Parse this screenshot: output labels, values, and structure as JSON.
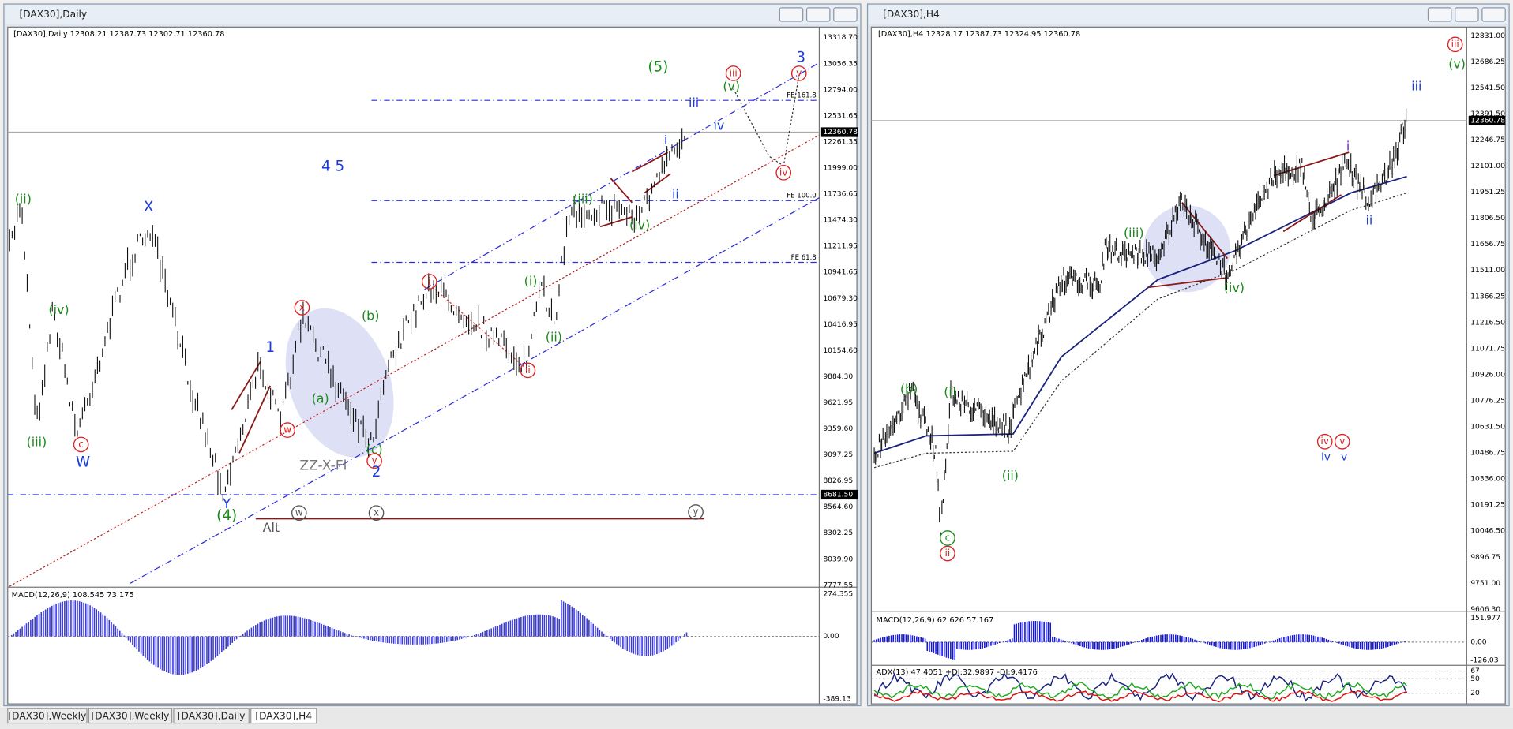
{
  "left_window": {
    "title": "[DAX30],Daily",
    "header": "[DAX30],Daily  12308.21 12387.73 12302.71 12360.78",
    "price_axis": [
      "13318.70",
      "13056.35",
      "12794.00",
      "12531.65",
      "12261.35",
      "11999.00",
      "11736.65",
      "11474.30",
      "11211.95",
      "10941.65",
      "10679.30",
      "10416.95",
      "10154.60",
      "9884.30",
      "9621.95",
      "9359.60",
      "9097.25",
      "8826.95",
      "8564.60",
      "8302.25",
      "8039.90",
      "7777.55"
    ],
    "current_price": "12360.78",
    "level_price": "8681.50",
    "fib_labels": [
      "FE 161.8",
      "FE 100.0",
      "FE 61.8"
    ],
    "wave_labels": [
      "(ii)",
      "(iv)",
      "(iii)",
      "c",
      "W",
      "X",
      "1",
      "x",
      "w",
      "(a)",
      "(b)",
      "(c)",
      "y",
      "2",
      "ZZ-X-Fl",
      "Y",
      "(4)",
      "w",
      "x",
      "y",
      "Alt",
      "i",
      "ii",
      "(i)",
      "(ii)",
      "(iii)",
      "(iv)",
      "i",
      "ii",
      "iii",
      "iv",
      "(v)",
      "iii",
      "iv",
      "v",
      "3",
      "(5)",
      "4 5"
    ],
    "macd": {
      "label": "MACD(12,26,9) 108.545 73.175",
      "axis": [
        "274.355",
        "0.00",
        "-389.13"
      ]
    }
  },
  "right_window": {
    "title": "[DAX30],H4",
    "header": "[DAX30],H4  12328.17 12387.73 12324.95 12360.78",
    "price_axis": [
      "12831.00",
      "12686.25",
      "12541.50",
      "12391.50",
      "12246.75",
      "12101.00",
      "11951.25",
      "11806.50",
      "11656.75",
      "11511.00",
      "11366.25",
      "11216.50",
      "11071.75",
      "10926.00",
      "10776.25",
      "10631.50",
      "10486.75",
      "10336.00",
      "10191.25",
      "10046.50",
      "9896.75",
      "9751.00",
      "9606.30"
    ],
    "current_price": "12360.78",
    "wave_labels": [
      "iii",
      "(v)",
      "iii",
      "i",
      "ii",
      "(iii)",
      "(iv)",
      "(b)",
      "(i)",
      "(ii)",
      "c",
      "ii",
      "iv",
      "v",
      "iv",
      "v"
    ],
    "macd": {
      "label": "MACD(12,26,9) 62.626 57.167",
      "axis": [
        "151.977",
        "0.00",
        "-126.03"
      ]
    },
    "adx": {
      "label": "ADX(13) 47.4051 +DI:32.9897 -DI:9.4176",
      "axis": [
        "67",
        "50",
        "20"
      ]
    }
  },
  "tabs": [
    "[DAX30],Weekly",
    "[DAX30],Weekly",
    "[DAX30],Daily",
    "[DAX30],H4"
  ]
}
